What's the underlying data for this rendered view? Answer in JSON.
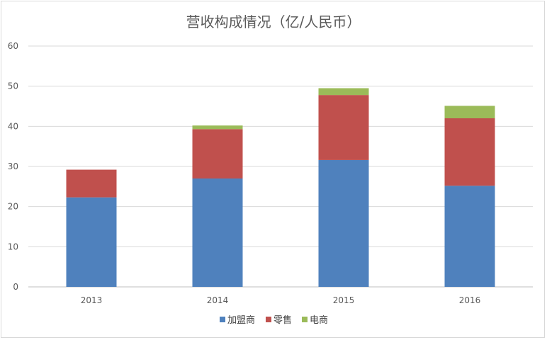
{
  "chart_data": {
    "type": "bar",
    "stacked": true,
    "title": "营收构成情况（亿/人民币）",
    "categories": [
      "2013",
      "2014",
      "2015",
      "2016"
    ],
    "series": [
      {
        "name": "加盟商",
        "values": [
          22.3,
          27.0,
          31.6,
          25.2
        ],
        "color": "#4F81BD"
      },
      {
        "name": "零售",
        "values": [
          6.9,
          12.3,
          16.2,
          16.8
        ],
        "color": "#C0504D"
      },
      {
        "name": "电商",
        "values": [
          0,
          0.9,
          1.7,
          3.1
        ],
        "color": "#9BBB59"
      }
    ],
    "ylim": [
      0,
      60
    ],
    "yticks": [
      0,
      10,
      20,
      30,
      40,
      50,
      60
    ],
    "grid": true,
    "legend_position": "bottom"
  }
}
